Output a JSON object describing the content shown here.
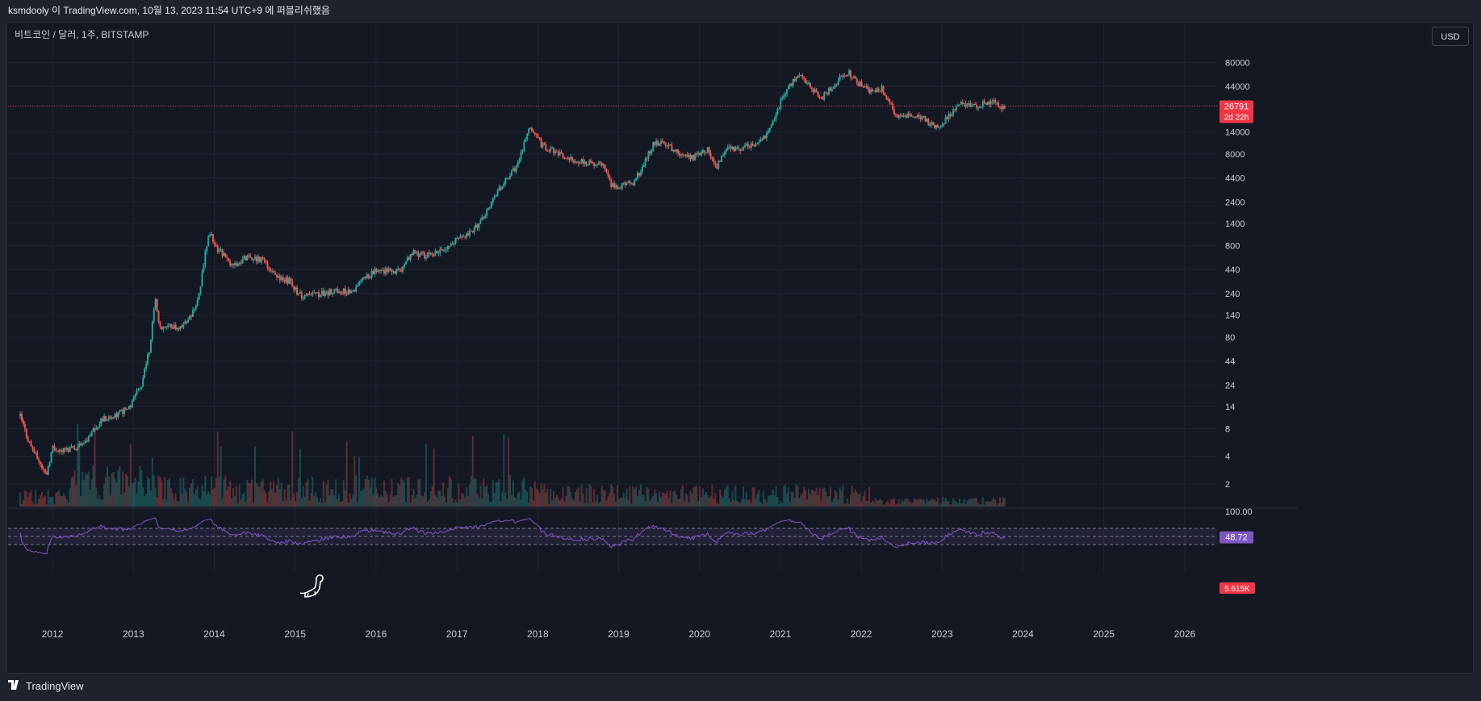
{
  "header": {
    "text": "ksmdooly 이 TradingView.com, 10월 13, 2023 11:54 UTC+9 에 퍼블리쉬했음"
  },
  "symbol": {
    "label": "비트코인 / 달러, 1주, BITSTAMP"
  },
  "currency_button": {
    "label": "USD"
  },
  "brand": {
    "logo": "17",
    "name": "TradingView"
  },
  "price_tag": {
    "value": "26791",
    "countdown": "2d 22h",
    "color": "#f23645"
  },
  "volume_tag": {
    "value": "5.615K"
  },
  "rsi_tag": {
    "value": "48.72",
    "color": "#7e57c2"
  },
  "rsi_top_label": "100.00",
  "colors": {
    "up": "#26a69a",
    "down": "#ef5350",
    "rsi": "#7e57c2",
    "grid": "#1f2430"
  },
  "chart_data": {
    "type": "candlestick",
    "scale": "log",
    "y_ticks": [
      2,
      4,
      8,
      14,
      24,
      44,
      80,
      140,
      240,
      440,
      800,
      1400,
      2400,
      4400,
      8000,
      14000,
      26791,
      44000,
      80000
    ],
    "y_labels": [
      "2",
      "4",
      "8",
      "14",
      "24",
      "44",
      "80",
      "140",
      "240",
      "440",
      "800",
      "1400",
      "2400",
      "4400",
      "8000",
      "14000",
      "",
      "44000",
      "80000"
    ],
    "x_labels": [
      "2012",
      "2013",
      "2014",
      "2015",
      "2016",
      "2017",
      "2018",
      "2019",
      "2020",
      "2021",
      "2022",
      "2023",
      "2024",
      "2025",
      "2026"
    ],
    "x_range": [
      2011.45,
      2026.4
    ],
    "y_range": [
      1.2,
      140000
    ],
    "last_price": 26791,
    "price_path": [
      [
        2011.6,
        11
      ],
      [
        2011.7,
        6
      ],
      [
        2011.8,
        4
      ],
      [
        2011.92,
        2.5
      ],
      [
        2012.0,
        5
      ],
      [
        2012.1,
        4.6
      ],
      [
        2012.3,
        5
      ],
      [
        2012.45,
        6.5
      ],
      [
        2012.6,
        10
      ],
      [
        2012.75,
        11
      ],
      [
        2012.95,
        13.5
      ],
      [
        2013.1,
        25
      ],
      [
        2013.2,
        60
      ],
      [
        2013.27,
        220
      ],
      [
        2013.32,
        100
      ],
      [
        2013.45,
        110
      ],
      [
        2013.55,
        100
      ],
      [
        2013.7,
        130
      ],
      [
        2013.8,
        200
      ],
      [
        2013.9,
        800
      ],
      [
        2013.95,
        1100
      ],
      [
        2014.0,
        800
      ],
      [
        2014.1,
        650
      ],
      [
        2014.2,
        480
      ],
      [
        2014.4,
        600
      ],
      [
        2014.6,
        560
      ],
      [
        2014.75,
        380
      ],
      [
        2014.95,
        320
      ],
      [
        2015.05,
        230
      ],
      [
        2015.3,
        240
      ],
      [
        2015.55,
        260
      ],
      [
        2015.7,
        240
      ],
      [
        2015.85,
        350
      ],
      [
        2016.0,
        420
      ],
      [
        2016.3,
        430
      ],
      [
        2016.45,
        680
      ],
      [
        2016.6,
        620
      ],
      [
        2016.8,
        700
      ],
      [
        2017.0,
        950
      ],
      [
        2017.2,
        1150
      ],
      [
        2017.35,
        1700
      ],
      [
        2017.45,
        2600
      ],
      [
        2017.6,
        4200
      ],
      [
        2017.75,
        6000
      ],
      [
        2017.9,
        16000
      ],
      [
        2017.98,
        14000
      ],
      [
        2018.05,
        10000
      ],
      [
        2018.2,
        8500
      ],
      [
        2018.4,
        7000
      ],
      [
        2018.6,
        6500
      ],
      [
        2018.8,
        6300
      ],
      [
        2018.9,
        3800
      ],
      [
        2019.0,
        3500
      ],
      [
        2019.2,
        4000
      ],
      [
        2019.35,
        7500
      ],
      [
        2019.45,
        11000
      ],
      [
        2019.6,
        10000
      ],
      [
        2019.75,
        8000
      ],
      [
        2019.9,
        7200
      ],
      [
        2020.1,
        9000
      ],
      [
        2020.2,
        5500
      ],
      [
        2020.35,
        9200
      ],
      [
        2020.5,
        9200
      ],
      [
        2020.7,
        10500
      ],
      [
        2020.85,
        13500
      ],
      [
        2020.95,
        23000
      ],
      [
        2021.05,
        37000
      ],
      [
        2021.15,
        50000
      ],
      [
        2021.25,
        58000
      ],
      [
        2021.35,
        45000
      ],
      [
        2021.5,
        32000
      ],
      [
        2021.6,
        40000
      ],
      [
        2021.75,
        55000
      ],
      [
        2021.85,
        62000
      ],
      [
        2021.95,
        48000
      ],
      [
        2022.1,
        40000
      ],
      [
        2022.25,
        42000
      ],
      [
        2022.35,
        30000
      ],
      [
        2022.45,
        20000
      ],
      [
        2022.6,
        21000
      ],
      [
        2022.75,
        20000
      ],
      [
        2022.88,
        16500
      ],
      [
        2023.0,
        17000
      ],
      [
        2023.1,
        22000
      ],
      [
        2023.25,
        28000
      ],
      [
        2023.45,
        27000
      ],
      [
        2023.55,
        30000
      ],
      [
        2023.65,
        29000
      ],
      [
        2023.7,
        26000
      ],
      [
        2023.78,
        26791
      ]
    ],
    "rsi": {
      "range": [
        0,
        100
      ],
      "bands": [
        30,
        50,
        70
      ],
      "last": 48.72
    }
  }
}
